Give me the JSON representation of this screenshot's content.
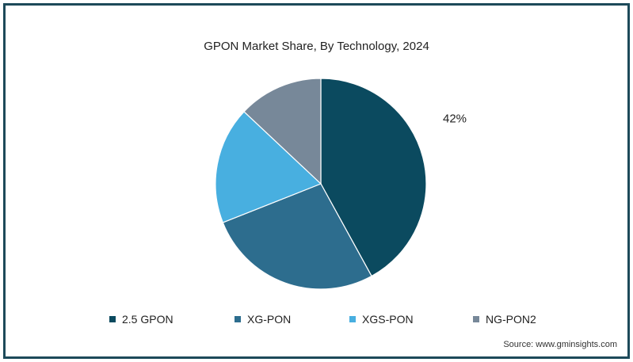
{
  "chart_data": {
    "type": "pie",
    "title": "GPON Market Share, By Technology, 2024",
    "categories": [
      "2.5 GPON",
      "XG-PON",
      "XGS-PON",
      "NG-PON2"
    ],
    "values": [
      42,
      27,
      18,
      13
    ],
    "value_unit": "%",
    "visible_value_labels": [
      "42%",
      "",
      "",
      ""
    ],
    "colors": [
      "#0b4a5f",
      "#2d6d8e",
      "#48afe0",
      "#778899"
    ],
    "legend_position": "bottom",
    "start_angle_deg": 0,
    "direction": "clockwise"
  },
  "source": "Source: www.gminsights.com"
}
